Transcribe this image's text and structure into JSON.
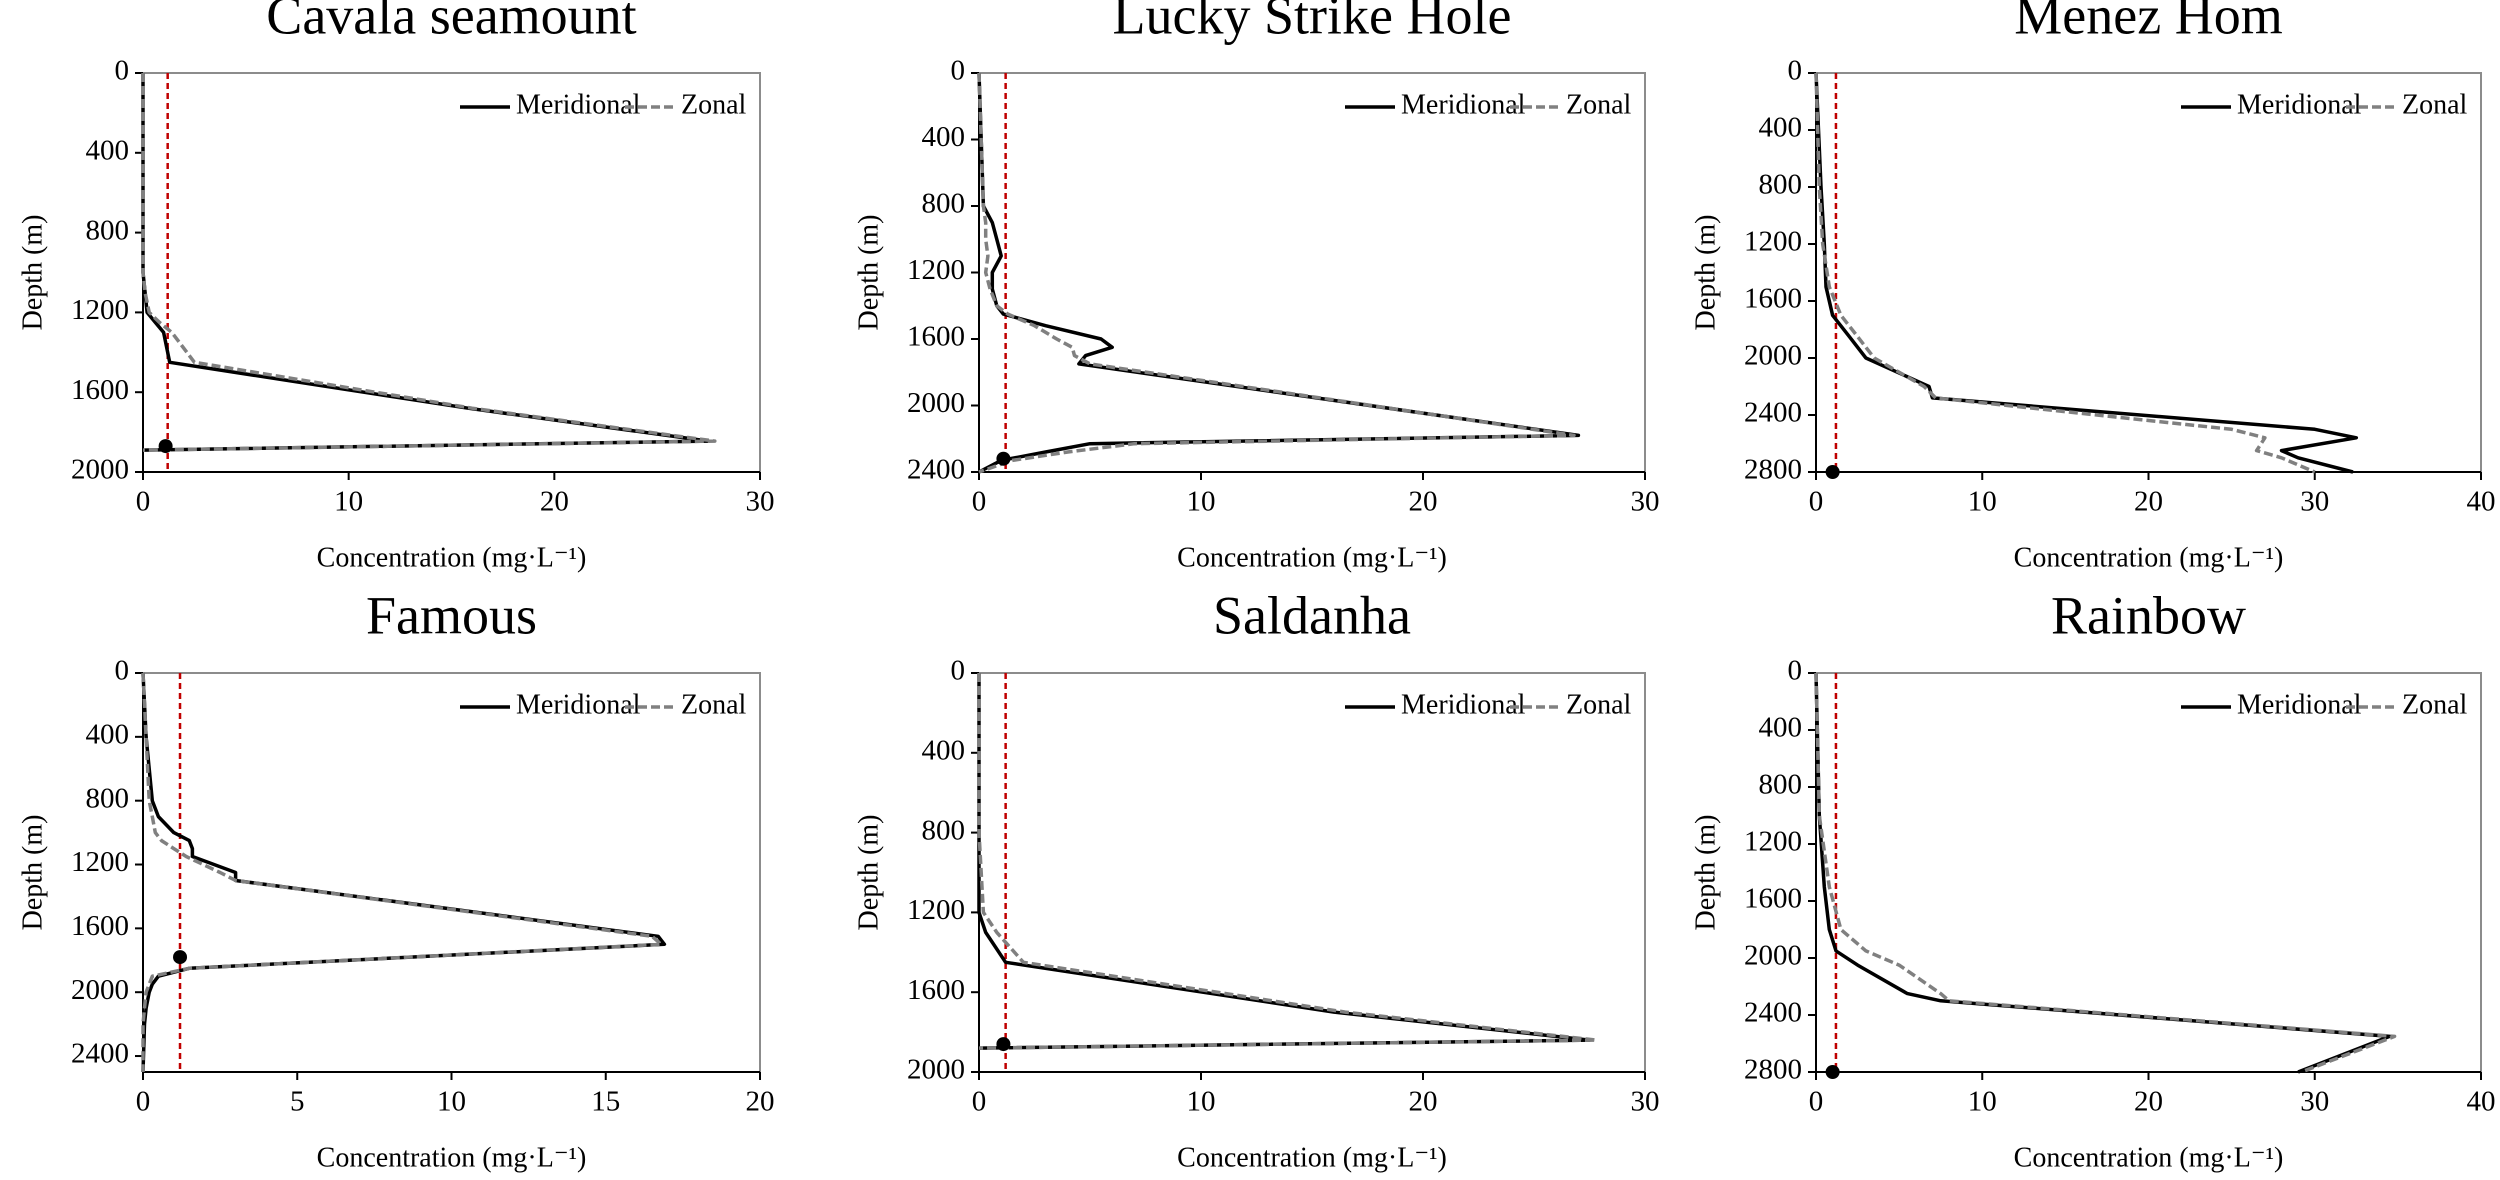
{
  "chart_data": [
    {
      "type": "line",
      "title": "Cavala seamount",
      "xlabel": "Concentration (mg·L⁻¹)",
      "ylabel": "Depth (m)",
      "xlim": [
        0,
        30
      ],
      "xticks": [
        0,
        10,
        20,
        30
      ],
      "ylim": [
        0,
        2000
      ],
      "yticks": [
        0,
        400,
        800,
        1200,
        1600,
        2000
      ],
      "y_inverted": true,
      "legend": "upper right",
      "y": [
        0,
        200,
        400,
        600,
        800,
        1000,
        1100,
        1200,
        1250,
        1300,
        1450,
        1680,
        1845,
        1890
      ],
      "series": [
        {
          "name": "Meridional",
          "color": "#000000",
          "style": "solid",
          "values": [
            0,
            0,
            0,
            0,
            0,
            0,
            0.1,
            0.2,
            0.6,
            1.0,
            1.3,
            15.8,
            27.5,
            0
          ]
        },
        {
          "name": "Zonal",
          "color": "#808080",
          "style": "dashed",
          "values": [
            0,
            0,
            0,
            0,
            0,
            0,
            0.1,
            0.3,
            0.8,
            1.4,
            2.5,
            16,
            27.8,
            0
          ]
        }
      ],
      "reference_x": 1.2,
      "reference_color": "#c00000",
      "point": {
        "x": 1.1,
        "y": 1870
      }
    },
    {
      "type": "line",
      "title": "Lucky Strike Hole",
      "xlabel": "Concentration (mg·L⁻¹)",
      "ylabel": "Depth (m)",
      "xlim": [
        0,
        30
      ],
      "xticks": [
        0,
        10,
        20,
        30
      ],
      "ylim": [
        0,
        2400
      ],
      "yticks": [
        0,
        400,
        800,
        1200,
        1600,
        2000,
        2400
      ],
      "y_inverted": true,
      "legend": "upper right",
      "y": [
        0,
        400,
        800,
        900,
        1000,
        1100,
        1200,
        1300,
        1400,
        1450,
        1520,
        1600,
        1650,
        1700,
        1750,
        2180,
        2230,
        2280,
        2330,
        2400
      ],
      "series": [
        {
          "name": "Meridional",
          "color": "#000000",
          "style": "solid",
          "values": [
            0,
            0.1,
            0.2,
            0.6,
            0.8,
            1.0,
            0.6,
            0.6,
            0.8,
            1.1,
            3.0,
            5.5,
            6.0,
            4.8,
            4.5,
            27,
            5,
            3,
            1,
            0
          ]
        },
        {
          "name": "Zonal",
          "color": "#808080",
          "style": "dashed",
          "values": [
            0,
            0.1,
            0.2,
            0.3,
            0.3,
            0.4,
            0.3,
            0.5,
            0.8,
            1.3,
            2.5,
            3.5,
            4.2,
            4.3,
            5,
            26.8,
            7,
            4,
            1.5,
            0
          ]
        }
      ],
      "reference_x": 1.2,
      "reference_color": "#c00000",
      "point": {
        "x": 1.1,
        "y": 2320
      }
    },
    {
      "type": "line",
      "title": "Menez Hom",
      "xlabel": "Concentration (mg·L⁻¹)",
      "ylabel": "Depth (m)",
      "xlim": [
        0,
        40
      ],
      "xticks": [
        0,
        10,
        20,
        30,
        40
      ],
      "ylim": [
        0,
        2800
      ],
      "yticks": [
        0,
        400,
        800,
        1200,
        1600,
        2000,
        2400,
        2800
      ],
      "y_inverted": true,
      "legend": "upper right",
      "y": [
        0,
        800,
        1200,
        1500,
        1700,
        1850,
        2000,
        2200,
        2280,
        2500,
        2560,
        2650,
        2700,
        2800
      ],
      "series": [
        {
          "name": "Meridional",
          "color": "#000000",
          "style": "solid",
          "values": [
            0,
            0.3,
            0.5,
            0.6,
            1.0,
            2.0,
            3.0,
            6.8,
            7.0,
            30,
            32.5,
            28,
            29,
            32.3
          ]
        },
        {
          "name": "Zonal",
          "color": "#808080",
          "style": "dashed",
          "values": [
            0,
            0.2,
            0.4,
            0.8,
            1.5,
            2.5,
            3.5,
            6.5,
            7.2,
            25,
            27,
            26.5,
            28,
            30
          ]
        }
      ],
      "reference_x": 1.2,
      "reference_color": "#c00000",
      "point": {
        "x": 1,
        "y": 2800
      }
    },
    {
      "type": "line",
      "title": "Famous",
      "xlabel": "Concentration (mg·L⁻¹)",
      "ylabel": "Depth (m)",
      "xlim": [
        0,
        20
      ],
      "xticks": [
        0,
        5,
        10,
        15,
        20
      ],
      "ylim": [
        0,
        2500
      ],
      "yticks": [
        0,
        400,
        800,
        1200,
        1600,
        2000,
        2400
      ],
      "y_inverted": true,
      "legend": "upper right",
      "y": [
        0,
        400,
        800,
        900,
        1000,
        1050,
        1100,
        1150,
        1250,
        1300,
        1650,
        1700,
        1850,
        1900,
        1950,
        2000,
        2100,
        2200,
        2500
      ],
      "series": [
        {
          "name": "Meridional",
          "color": "#000000",
          "style": "solid",
          "values": [
            0,
            0.1,
            0.3,
            0.5,
            1.0,
            1.5,
            1.6,
            1.6,
            3.0,
            3.0,
            16.7,
            16.9,
            1.5,
            0.5,
            0.3,
            0.2,
            0.1,
            0.05,
            0
          ]
        },
        {
          "name": "Zonal",
          "color": "#808080",
          "style": "dashed",
          "values": [
            0,
            0.1,
            0.2,
            0.3,
            0.4,
            0.6,
            1.0,
            1.4,
            2.5,
            3.0,
            16.5,
            16.8,
            1.5,
            0.3,
            0.2,
            0.1,
            0.05,
            0,
            0
          ]
        }
      ],
      "reference_x": 1.2,
      "reference_color": "#c00000",
      "point": {
        "x": 1.2,
        "y": 1780
      }
    },
    {
      "type": "line",
      "title": "Saldanha",
      "xlabel": "Concentration (mg·L⁻¹)",
      "ylabel": "Depth (m)",
      "xlim": [
        0,
        30
      ],
      "xticks": [
        0,
        10,
        20,
        30
      ],
      "ylim": [
        0,
        2000
      ],
      "yticks": [
        0,
        400,
        800,
        1200,
        1600,
        2000
      ],
      "y_inverted": true,
      "legend": "upper right",
      "y": [
        0,
        800,
        1200,
        1300,
        1450,
        1700,
        1840,
        1880
      ],
      "series": [
        {
          "name": "Meridional",
          "color": "#000000",
          "style": "solid",
          "values": [
            0,
            0,
            0,
            0.3,
            1.2,
            16,
            27.5,
            0
          ]
        },
        {
          "name": "Zonal",
          "color": "#808080",
          "style": "dashed",
          "values": [
            0,
            0,
            0.2,
            0.8,
            2,
            16.5,
            27.8,
            0
          ]
        }
      ],
      "reference_x": 1.2,
      "reference_color": "#c00000",
      "point": {
        "x": 1.1,
        "y": 1860
      }
    },
    {
      "type": "line",
      "title": "Rainbow",
      "xlabel": "Concentration (mg·L⁻¹)",
      "ylabel": "Depth (m)",
      "xlim": [
        0,
        40
      ],
      "xticks": [
        0,
        10,
        20,
        30,
        40
      ],
      "ylim": [
        0,
        2800
      ],
      "yticks": [
        0,
        400,
        800,
        1200,
        1600,
        2000,
        2400,
        2800
      ],
      "y_inverted": true,
      "legend": "upper right",
      "y": [
        0,
        1000,
        1500,
        1800,
        1950,
        2050,
        2250,
        2300,
        2550,
        2800
      ],
      "series": [
        {
          "name": "Meridional",
          "color": "#000000",
          "style": "solid",
          "values": [
            0,
            0.2,
            0.5,
            0.8,
            1.2,
            2.5,
            5.5,
            7.5,
            34.5,
            29
          ]
        },
        {
          "name": "Zonal",
          "color": "#808080",
          "style": "dashed",
          "values": [
            0,
            0.2,
            0.8,
            1.5,
            3,
            5,
            7.5,
            8,
            34.8,
            29.2
          ]
        }
      ],
      "reference_x": 1.2,
      "reference_color": "#c00000",
      "point": {
        "x": 1,
        "y": 2800
      }
    }
  ]
}
